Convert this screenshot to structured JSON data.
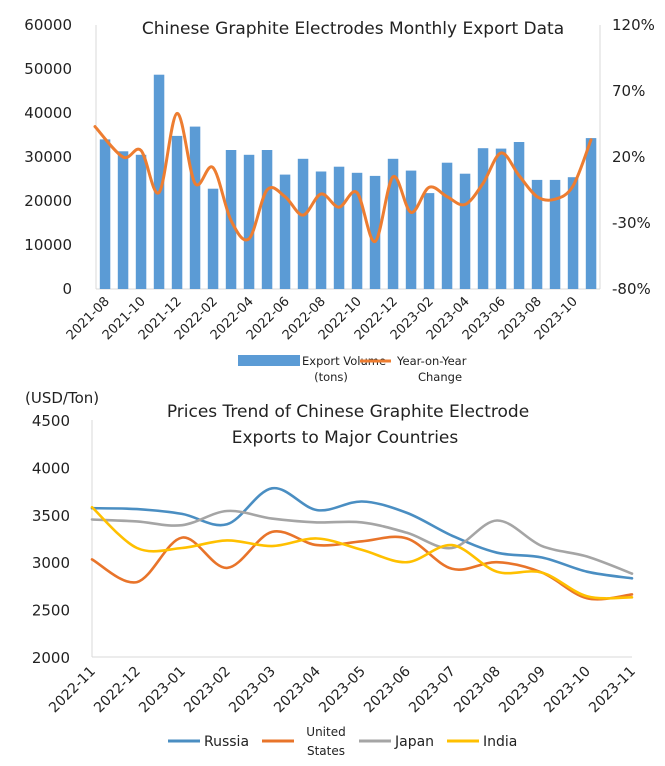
{
  "chart_data": [
    {
      "type": "bar",
      "title": "Chinese Graphite Electrodes Monthly Export Data",
      "categories": [
        "2021-08",
        "2021-09",
        "2021-10",
        "2021-11",
        "2021-12",
        "2022-01",
        "2022-02",
        "2022-03",
        "2022-04",
        "2022-05",
        "2022-06",
        "2022-07",
        "2022-08",
        "2022-09",
        "2022-10",
        "2022-11",
        "2022-12",
        "2023-01",
        "2023-02",
        "2023-03",
        "2023-04",
        "2023-05",
        "2023-06",
        "2023-07",
        "2023-08",
        "2023-09",
        "2023-10",
        "2023-11"
      ],
      "x_tick_labels": [
        "2021-08",
        "2021-10",
        "2021-12",
        "2022-02",
        "2022-04",
        "2022-06",
        "2022-08",
        "2022-10",
        "2022-12",
        "2023-02",
        "2023-04",
        "2023-06",
        "2023-08",
        "2023-10"
      ],
      "y_left_ticks": [
        "0",
        "10000",
        "20000",
        "30000",
        "40000",
        "50000",
        "60000"
      ],
      "y_right_ticks": [
        "-80%",
        "-30%",
        "20%",
        "70%",
        "120%"
      ],
      "ylim_left": [
        0,
        60000
      ],
      "ylim_right": [
        -80,
        120
      ],
      "series": [
        {
          "name": "Export Volume",
          "name_line2": "(tons)",
          "axis": "left",
          "render": "bar",
          "color": "#5b9bd5",
          "values": [
            34000,
            31300,
            30500,
            48700,
            34800,
            36900,
            22800,
            31600,
            30500,
            31600,
            26000,
            29600,
            26700,
            27800,
            26400,
            25700,
            29600,
            26900,
            21800,
            28700,
            26200,
            32000,
            31900,
            33400,
            24800,
            24800,
            25400,
            34300
          ]
        },
        {
          "name": "Year-on-Year",
          "name_line2": "Change",
          "axis": "right",
          "render": "line",
          "color": "#ed7d31",
          "values": [
            43,
            20,
            25,
            -7,
            53,
            0,
            12,
            -28,
            -42,
            -5,
            -10,
            -24,
            -8,
            -18,
            -7,
            -44,
            5,
            -22,
            -3,
            -10,
            -16,
            0,
            23,
            6,
            -10,
            -12,
            -2,
            33
          ]
        }
      ],
      "grid": false,
      "legend": "bottom"
    },
    {
      "type": "line",
      "title": "Prices Trend of Chinese Graphite Electrode",
      "title_line2": "Exports to Major Countries",
      "unit_label": "(USD/Ton)",
      "categories": [
        "2022-11",
        "2022-12",
        "2023-01",
        "2023-02",
        "2023-03",
        "2023-04",
        "2023-05",
        "2023-06",
        "2023-07",
        "2023-08",
        "2023-09",
        "2023-10",
        "2023-11"
      ],
      "y_ticks": [
        "2000",
        "2500",
        "3000",
        "3500",
        "4000",
        "4500"
      ],
      "ylim": [
        2000,
        4500
      ],
      "series": [
        {
          "name": "Russia",
          "color": "#4a8ec2",
          "values": [
            3570,
            3560,
            3510,
            3400,
            3780,
            3550,
            3640,
            3520,
            3280,
            3100,
            3050,
            2900,
            2830
          ]
        },
        {
          "name": "United",
          "name_line2": "States",
          "color": "#e8742a",
          "values": [
            3030,
            2790,
            3260,
            2940,
            3320,
            3180,
            3220,
            3250,
            2930,
            3000,
            2890,
            2620,
            2660
          ]
        },
        {
          "name": "Japan",
          "color": "#a5a5a5",
          "values": [
            3450,
            3430,
            3390,
            3540,
            3460,
            3420,
            3420,
            3310,
            3150,
            3440,
            3170,
            3060,
            2880
          ]
        },
        {
          "name": "India",
          "color": "#ffc000",
          "values": [
            3580,
            3150,
            3150,
            3230,
            3170,
            3250,
            3130,
            3000,
            3180,
            2900,
            2890,
            2640,
            2630
          ]
        }
      ],
      "grid": false,
      "legend": "bottom"
    }
  ]
}
